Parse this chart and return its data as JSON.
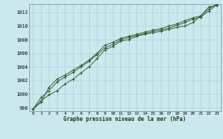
{
  "title": "Graphe pression niveau de la mer (hPa)",
  "bg_color": "#cce8ef",
  "grid_color": "#aacdd6",
  "line_color": "#2d5a27",
  "marker_color": "#2d5a27",
  "xlim": [
    -0.5,
    23.5
  ],
  "ylim": [
    997.5,
    1013.2
  ],
  "yticks": [
    998,
    1000,
    1002,
    1004,
    1006,
    1008,
    1010,
    1012
  ],
  "xticks": [
    0,
    1,
    2,
    3,
    4,
    5,
    6,
    7,
    8,
    9,
    10,
    11,
    12,
    13,
    14,
    15,
    16,
    17,
    18,
    19,
    20,
    21,
    22,
    23
  ],
  "series": [
    [
      997.8,
      999.0,
      999.9,
      1000.5,
      1001.5,
      1002.2,
      1003.1,
      1004.0,
      1005.2,
      1006.5,
      1007.0,
      1007.8,
      1008.0,
      1008.5,
      1008.8,
      1009.0,
      1009.2,
      1009.5,
      1009.8,
      1010.0,
      1010.5,
      1011.5,
      1012.8,
      1013.0
    ],
    [
      997.8,
      998.8,
      1001.0,
      1002.2,
      1002.8,
      1003.5,
      1004.2,
      1005.0,
      1006.0,
      1007.2,
      1007.6,
      1008.2,
      1008.5,
      1008.8,
      1009.1,
      1009.4,
      1009.6,
      1010.0,
      1010.3,
      1010.8,
      1011.2,
      1011.5,
      1012.5,
      1013.2
    ],
    [
      997.8,
      999.5,
      1000.5,
      1001.8,
      1002.5,
      1003.2,
      1004.0,
      1004.8,
      1005.8,
      1006.8,
      1007.3,
      1008.0,
      1008.3,
      1008.6,
      1008.9,
      1009.2,
      1009.4,
      1009.7,
      1010.1,
      1010.5,
      1011.0,
      1011.3,
      1012.2,
      1013.1
    ]
  ]
}
